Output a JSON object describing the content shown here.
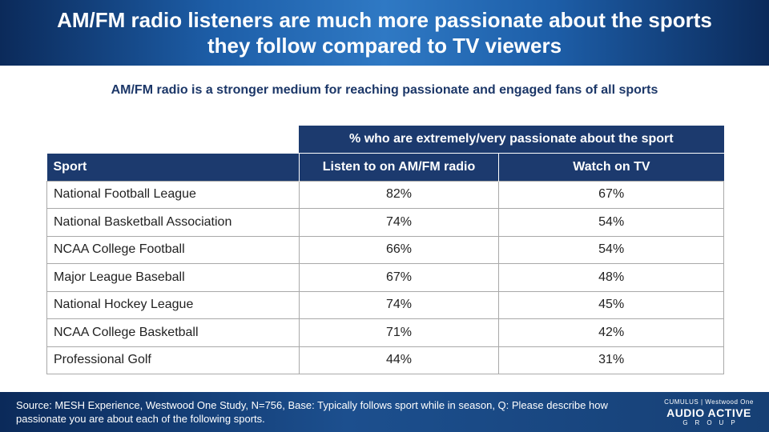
{
  "header": {
    "title": "AM/FM radio listeners are much more passionate about the sports they follow compared to TV viewers"
  },
  "subtitle": "AM/FM radio is a stronger medium for reaching passionate and engaged fans of all sports",
  "table": {
    "group_header": "% who are extremely/very passionate about the sport",
    "columns": [
      "Sport",
      "Listen to on AM/FM radio",
      "Watch on TV"
    ],
    "rows": [
      {
        "sport": "National Football League",
        "radio": "82%",
        "tv": "67%"
      },
      {
        "sport": "National Basketball Association",
        "radio": "74%",
        "tv": "54%"
      },
      {
        "sport": "NCAA College Football",
        "radio": "66%",
        "tv": "54%"
      },
      {
        "sport": "Major League Baseball",
        "radio": "67%",
        "tv": "48%"
      },
      {
        "sport": "National Hockey League",
        "radio": "74%",
        "tv": "45%"
      },
      {
        "sport": "NCAA College Basketball",
        "radio": "71%",
        "tv": "42%"
      },
      {
        "sport": "Professional Golf",
        "radio": "44%",
        "tv": "31%"
      }
    ]
  },
  "footer": {
    "source": "Source: MESH Experience, Westwood One Study, N=756, Base: Typically follows sport while in season, Q: Please describe how passionate you are about each of the following sports.",
    "logo_top": "CUMULUS | Westwood One",
    "logo_main": "AUDIO ACTIVE",
    "logo_sub": "GROUP"
  }
}
